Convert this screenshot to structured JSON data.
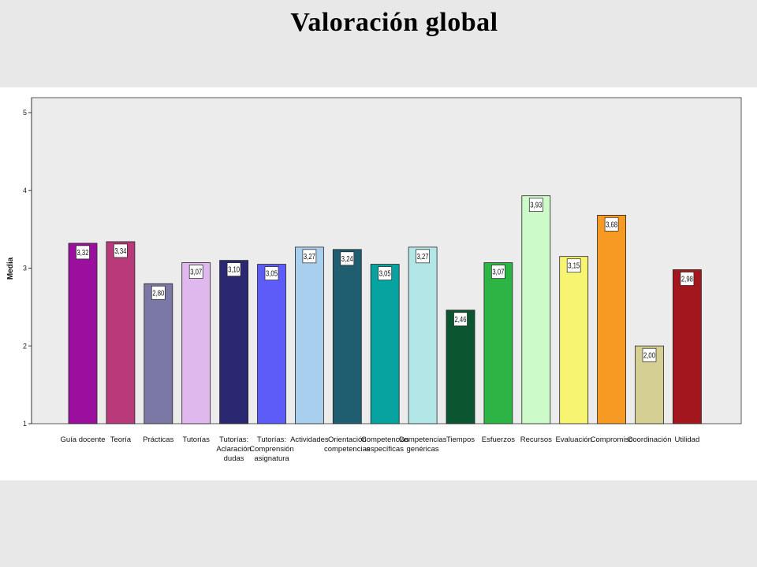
{
  "page": {
    "title": "Valoración global"
  },
  "colors": {
    "slide_background": "#e8e8e8",
    "panel_background": "#ffffff",
    "plot_background": "#ececec"
  },
  "chart_data": {
    "type": "bar",
    "title": "Valoración global",
    "xlabel": "",
    "ylabel": "Media",
    "ylim": [
      1,
      5
    ],
    "yticks": [
      "1",
      "2",
      "3",
      "4",
      "5"
    ],
    "grid": false,
    "categories": [
      [
        "Guía docente"
      ],
      [
        "Teoría"
      ],
      [
        "Prácticas"
      ],
      [
        "Tutorías"
      ],
      [
        "Tutorías:",
        "Aclaración",
        "dudas"
      ],
      [
        "Tutorías:",
        "Comprensión",
        "asignatura"
      ],
      [
        "Actividades"
      ],
      [
        "Orientación",
        "competencias"
      ],
      [
        "Competencias",
        "específicas"
      ],
      [
        "Competencias",
        "genéricas"
      ],
      [
        "Tiempos"
      ],
      [
        "Esfuerzos"
      ],
      [
        "Recursos"
      ],
      [
        "Evaluación"
      ],
      [
        "Compromiso"
      ],
      [
        "Coordinación"
      ],
      [
        "Utilidad"
      ]
    ],
    "values": [
      3.32,
      3.34,
      2.8,
      3.07,
      3.1,
      3.05,
      3.27,
      3.24,
      3.05,
      3.27,
      2.46,
      3.07,
      3.93,
      3.15,
      3.68,
      2.0,
      2.98
    ],
    "value_labels": [
      "3,32",
      "3,34",
      "2,80",
      "3,07",
      "3,10",
      "3,05",
      "3,27",
      "3,24",
      "3,05",
      "3,27",
      "2,46",
      "3,07",
      "3,93",
      "3,15",
      "3,68",
      "2,00",
      "2,98"
    ],
    "bar_colors": [
      "#9b0f9e",
      "#b83a7a",
      "#7b78a6",
      "#dfb8ee",
      "#2a2870",
      "#5e5cf8",
      "#a9cfee",
      "#1e5e70",
      "#07a3a0",
      "#b3e6e6",
      "#0b5530",
      "#2cb545",
      "#ccfac8",
      "#f7f472",
      "#f79a23",
      "#d5cf94",
      "#a3161e"
    ]
  }
}
